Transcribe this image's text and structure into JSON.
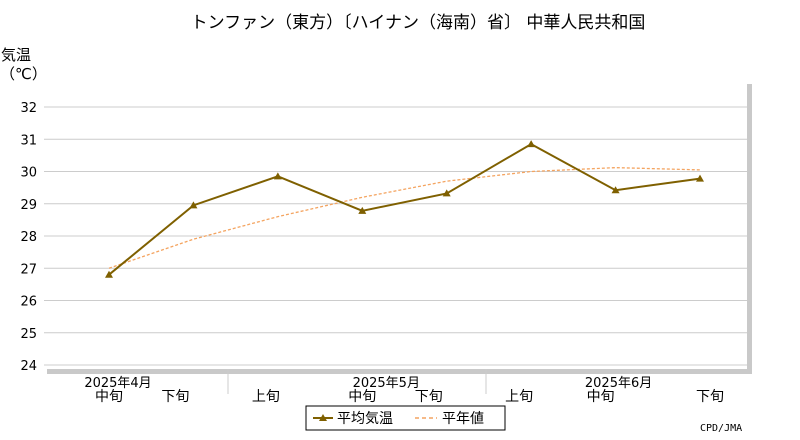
{
  "chart_data": {
    "type": "line",
    "title": "トンファン（東方）〔ハイナン（海南）省〕 中華人民共和国",
    "ylabel_line1": "気温",
    "ylabel_line2": "（℃）",
    "ylim": [
      24,
      32
    ],
    "yticks": [
      "24",
      "25",
      "26",
      "27",
      "28",
      "29",
      "30",
      "31",
      "32"
    ],
    "categories": [
      "中旬",
      "下旬",
      "上旬",
      "中旬",
      "下旬",
      "上旬",
      "中旬",
      "下旬"
    ],
    "months": [
      {
        "label": "2025年4月",
        "center_index": 0
      },
      {
        "label": "2025年5月",
        "center_index": 3
      },
      {
        "label": "2025年6月",
        "center_index": 6
      }
    ],
    "grid": true,
    "legend_position": "bottom-center",
    "series": [
      {
        "name": "平均気温",
        "color": "#7f6000",
        "style": "solid-triangle",
        "values": [
          26.8,
          28.95,
          29.85,
          28.78,
          29.32,
          30.85,
          29.42,
          29.78
        ]
      },
      {
        "name": "平年値",
        "color": "#f4a460",
        "style": "dashed",
        "values": [
          27.0,
          27.9,
          28.6,
          29.2,
          29.7,
          30.0,
          30.12,
          30.05
        ]
      }
    ],
    "credit": "CPD/JMA"
  }
}
